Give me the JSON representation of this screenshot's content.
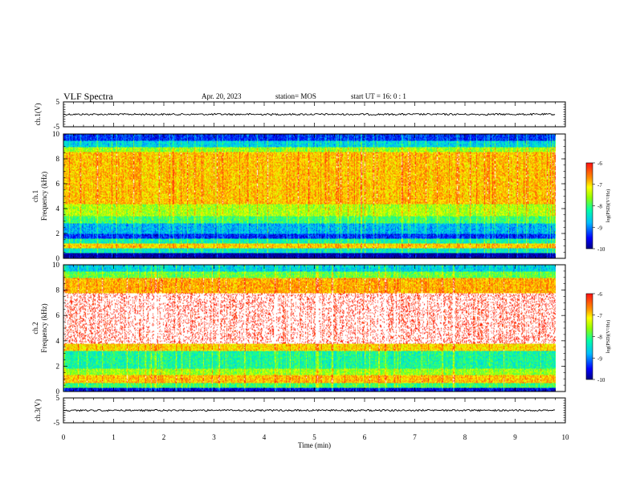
{
  "header": {
    "title": "VLF Spectra",
    "date": "Apr. 20, 2023",
    "station": "station= MOS",
    "start": "start  UT =   16: 0  : 1"
  },
  "colors": {
    "axis": "#000000",
    "waveform": "#000000"
  },
  "chart_data": [
    {
      "type": "line",
      "title": "",
      "ylabel": "ch.1(V)",
      "xlabel": "",
      "xlim": [
        0,
        10
      ],
      "ylim": [
        -5,
        5
      ],
      "yticks": [
        "5",
        "-5"
      ],
      "series": [
        {
          "x": [
            0,
            9.8
          ],
          "y": [
            0,
            0
          ]
        }
      ]
    },
    {
      "type": "heatmap",
      "title": "",
      "ylabel": "ch.1\nFrequency (kHz)",
      "xlabel": "",
      "xlim": [
        0,
        10
      ],
      "ylim": [
        0,
        10
      ],
      "x_data_end": 9.8,
      "yticks": [
        "0",
        "2",
        "4",
        "6",
        "8",
        "10"
      ],
      "colorbar": {
        "label": "log(PSD)(V²/Hz)",
        "range": [
          -10,
          -6
        ],
        "ticks": [
          "-6",
          "-7",
          "-8",
          "-9",
          "-10"
        ]
      },
      "bands": [
        {
          "f": [
            0.0,
            0.4
          ],
          "level": -10.0
        },
        {
          "f": [
            0.4,
            0.8
          ],
          "level": -8.4
        },
        {
          "f": [
            0.8,
            1.2
          ],
          "level": -7.0
        },
        {
          "f": [
            1.2,
            1.6
          ],
          "level": -8.3
        },
        {
          "f": [
            1.6,
            2.0
          ],
          "level": -9.4
        },
        {
          "f": [
            2.0,
            2.8
          ],
          "level": -8.8
        },
        {
          "f": [
            2.8,
            3.4
          ],
          "level": -8.0
        },
        {
          "f": [
            3.4,
            4.4
          ],
          "level": -7.5
        },
        {
          "f": [
            4.4,
            8.6
          ],
          "level": -6.9
        },
        {
          "f": [
            8.6,
            9.0
          ],
          "level": -7.6
        },
        {
          "f": [
            9.0,
            9.5
          ],
          "level": -8.6
        },
        {
          "f": [
            9.5,
            10.0
          ],
          "level": -9.4
        }
      ]
    },
    {
      "type": "heatmap",
      "title": "",
      "ylabel": "ch.2\nFrequency (kHz)",
      "xlabel": "",
      "xlim": [
        0,
        10
      ],
      "ylim": [
        0,
        10
      ],
      "x_data_end": 9.8,
      "yticks": [
        "0",
        "2",
        "4",
        "6",
        "8",
        "10"
      ],
      "colorbar": {
        "label": "log(PSD)(V²/Hz)",
        "range": [
          -10,
          -6
        ],
        "ticks": [
          "-6",
          "-7",
          "-8",
          "-9",
          "-10"
        ]
      },
      "bands": [
        {
          "f": [
            0.0,
            0.3
          ],
          "level": -9.6
        },
        {
          "f": [
            0.3,
            0.7
          ],
          "level": -8.0
        },
        {
          "f": [
            0.7,
            1.3
          ],
          "level": -6.9
        },
        {
          "f": [
            1.3,
            1.8
          ],
          "level": -7.6
        },
        {
          "f": [
            1.8,
            3.2
          ],
          "level": -8.2
        },
        {
          "f": [
            3.2,
            3.8
          ],
          "level": -7.0
        },
        {
          "f": [
            3.8,
            7.8
          ],
          "level": -5.8
        },
        {
          "f": [
            7.8,
            9.0
          ],
          "level": -6.8
        },
        {
          "f": [
            9.0,
            9.5
          ],
          "level": -7.8
        },
        {
          "f": [
            9.5,
            10.0
          ],
          "level": -8.6
        }
      ]
    },
    {
      "type": "line",
      "title": "",
      "ylabel": "ch.3(V)",
      "xlabel": "Time (min)",
      "xlim": [
        0,
        10
      ],
      "ylim": [
        -5,
        5
      ],
      "xticks": [
        "0",
        "1",
        "2",
        "3",
        "4",
        "5",
        "6",
        "7",
        "8",
        "9",
        "10"
      ],
      "yticks": [
        "5",
        "-5"
      ],
      "series": [
        {
          "x": [
            0,
            9.8
          ],
          "y": [
            0,
            0
          ]
        }
      ]
    }
  ]
}
